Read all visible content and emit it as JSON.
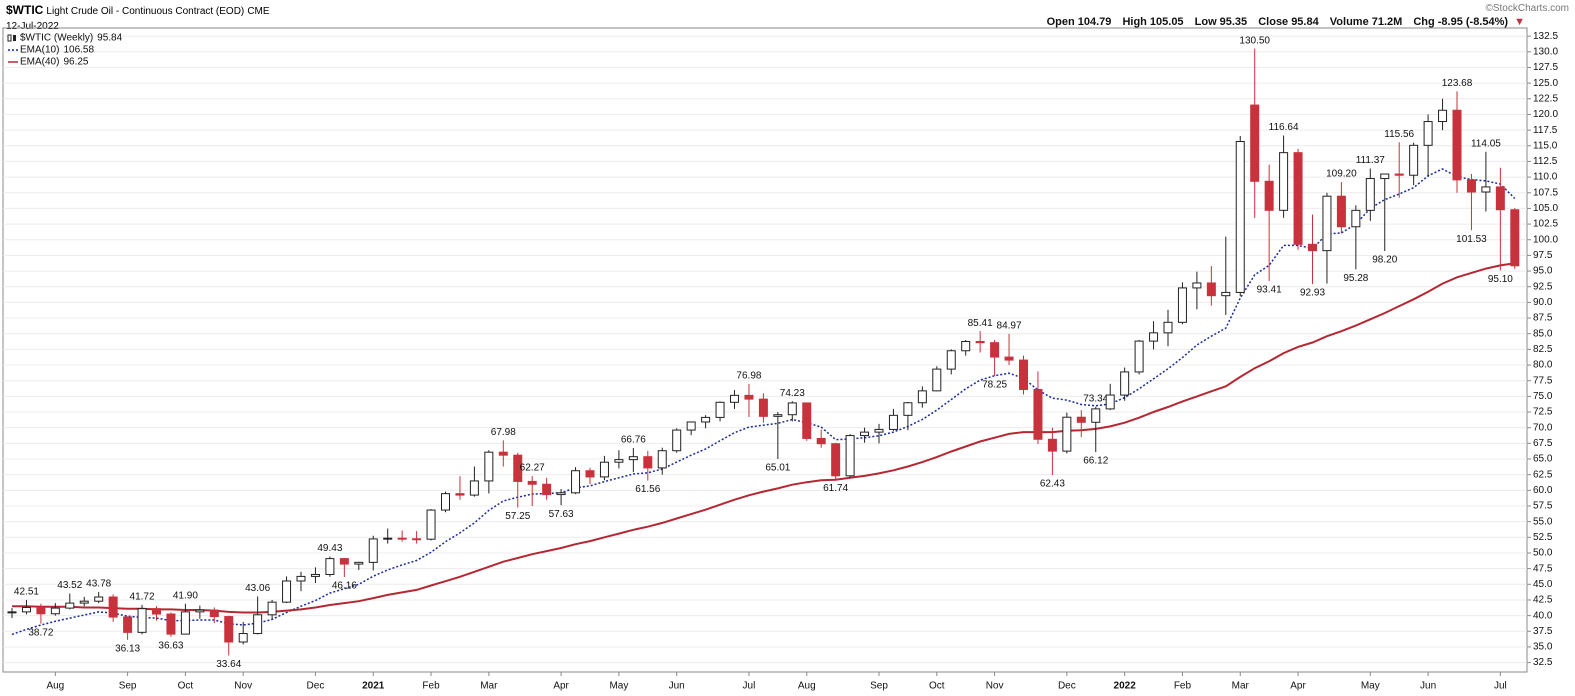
{
  "header": {
    "symbol": "$WTIC",
    "description": "Light Crude Oil - Continuous Contract (EOD)",
    "exchange": "CME",
    "date": "12-Jul-2022",
    "quote_labels": [
      "Open",
      "High",
      "Low",
      "Close",
      "Volume",
      "Chg"
    ],
    "volume": "71.2M",
    "change": "-8.95 (-8.54%)",
    "credit": "©StockCharts.com"
  },
  "chart_data": {
    "type": "candlestick",
    "name": "$WTIC (Weekly)",
    "categories": [
      null,
      null,
      null,
      "Aug",
      null,
      null,
      null,
      null,
      "Sep",
      null,
      null,
      null,
      "Oct",
      null,
      null,
      null,
      "Nov",
      null,
      null,
      null,
      null,
      "Dec",
      null,
      null,
      null,
      "2021",
      null,
      null,
      null,
      "Feb",
      null,
      null,
      null,
      "Mar",
      null,
      null,
      null,
      null,
      "Apr",
      null,
      null,
      null,
      "May",
      null,
      null,
      null,
      "Jun",
      null,
      null,
      null,
      null,
      "Jul",
      null,
      null,
      null,
      "Aug",
      null,
      null,
      null,
      null,
      "Sep",
      null,
      null,
      null,
      "Oct",
      null,
      null,
      null,
      "Nov",
      null,
      null,
      null,
      null,
      "Dec",
      null,
      null,
      null,
      "2022",
      null,
      null,
      null,
      "Feb",
      null,
      null,
      null,
      "Mar",
      null,
      null,
      null,
      "Apr",
      null,
      null,
      null,
      null,
      "May",
      null,
      null,
      null,
      "Jun",
      null,
      null,
      null,
      null,
      "Jul",
      null
    ],
    "open": [
      40.5,
      40.6,
      41.3,
      40.3,
      41.2,
      42.0,
      42.3,
      42.97,
      39.77,
      37.33,
      41.11,
      40.25,
      37.05,
      40.6,
      40.88,
      39.85,
      35.79,
      37.14,
      40.13,
      42.15,
      45.53,
      46.26,
      46.57,
      49.1,
      48.23,
      48.5,
      52.24,
      52.36,
      52.27,
      52.2,
      56.85,
      59.47,
      59.24,
      61.5,
      66.09,
      65.61,
      61.42,
      60.97,
      59.32,
      59.6,
      63.13,
      62.14,
      64.49,
      64.9,
      65.37,
      63.58,
      66.32,
      69.62,
      70.91,
      71.64,
      74.05,
      75.16,
      74.56,
      71.81,
      72.07,
      73.95,
      68.28,
      67.44,
      62.32,
      68.74,
      69.29,
      69.72,
      71.97,
      73.98,
      75.88,
      79.35,
      82.28,
      83.76,
      83.57,
      81.27,
      80.79,
      76.1,
      68.15,
      66.26,
      71.67,
      70.86,
      73.0,
      75.21,
      78.9,
      83.82,
      85.14,
      86.82,
      92.31,
      93.1,
      91.07,
      91.59,
      121.5,
      109.33,
      104.7,
      113.9,
      99.27,
      98.26,
      106.95,
      102.07,
      104.69,
      109.77,
      110.49,
      110.3,
      115.07,
      118.87,
      120.67,
      109.56,
      107.62,
      108.43,
      104.79
    ],
    "high": [
      41.2,
      42.51,
      41.9,
      42.0,
      43.52,
      43.0,
      43.78,
      43.4,
      39.9,
      41.72,
      41.5,
      40.5,
      41.9,
      41.6,
      41.3,
      40.0,
      39.0,
      43.06,
      42.5,
      46.26,
      47.0,
      47.7,
      49.43,
      49.2,
      48.6,
      52.75,
      53.9,
      53.6,
      53.5,
      57.0,
      59.8,
      62.26,
      63.8,
      66.4,
      67.98,
      66.0,
      62.27,
      62.0,
      60.2,
      63.7,
      63.6,
      65.5,
      66.4,
      66.76,
      66.3,
      66.8,
      69.9,
      71.0,
      72.0,
      74.2,
      76.0,
      76.98,
      75.5,
      72.5,
      74.23,
      74.0,
      69.7,
      67.6,
      69.0,
      70.0,
      70.6,
      73.0,
      74.1,
      76.6,
      79.8,
      82.5,
      84.0,
      85.41,
      84.0,
      84.97,
      81.5,
      79.0,
      70.0,
      72.4,
      72.8,
      73.34,
      77.0,
      79.6,
      84.0,
      87.0,
      88.8,
      93.2,
      94.9,
      95.8,
      100.5,
      116.57,
      130.5,
      112.0,
      116.64,
      114.5,
      104.0,
      107.5,
      109.2,
      105.5,
      111.37,
      110.5,
      115.56,
      115.5,
      120.0,
      122.5,
      123.68,
      110.5,
      114.05,
      111.5,
      105.05
    ],
    "low": [
      39.6,
      40.2,
      38.72,
      40.0,
      41.0,
      41.5,
      42.0,
      39.0,
      36.13,
      37.0,
      39.2,
      36.63,
      37.0,
      39.5,
      38.8,
      33.64,
      35.4,
      37.0,
      39.5,
      42.0,
      43.9,
      45.2,
      46.2,
      46.16,
      47.3,
      47.2,
      51.5,
      51.8,
      51.5,
      52.0,
      56.5,
      58.5,
      59.0,
      59.5,
      63.8,
      57.25,
      57.5,
      58.5,
      57.63,
      59.4,
      61.0,
      61.6,
      63.5,
      62.9,
      61.56,
      62.5,
      66.0,
      68.8,
      69.9,
      71.0,
      73.0,
      71.7,
      70.8,
      65.01,
      71.0,
      67.9,
      66.8,
      61.74,
      62.0,
      67.6,
      67.5,
      69.5,
      69.6,
      73.2,
      75.8,
      78.5,
      81.5,
      82.0,
      78.25,
      80.0,
      75.3,
      67.4,
      62.43,
      65.9,
      68.5,
      66.12,
      72.8,
      74.3,
      78.5,
      82.5,
      83.0,
      86.5,
      88.9,
      89.5,
      88.0,
      91.0,
      103.5,
      93.41,
      103.5,
      98.4,
      92.93,
      93.0,
      101.0,
      95.28,
      103.0,
      98.2,
      106.7,
      108.7,
      110.0,
      117.5,
      107.5,
      101.53,
      104.5,
      95.1,
      95.35
    ],
    "close": [
      40.6,
      41.3,
      40.3,
      41.2,
      42.0,
      42.3,
      42.97,
      39.77,
      37.33,
      41.11,
      40.25,
      37.05,
      40.6,
      40.88,
      39.85,
      35.79,
      37.14,
      40.13,
      42.15,
      45.53,
      46.26,
      46.57,
      49.1,
      48.23,
      48.5,
      52.24,
      52.36,
      52.27,
      52.2,
      56.85,
      59.47,
      59.24,
      61.5,
      66.09,
      65.61,
      61.42,
      60.97,
      59.32,
      59.6,
      63.13,
      62.14,
      64.49,
      64.9,
      65.37,
      63.58,
      66.32,
      69.62,
      70.91,
      71.64,
      74.05,
      75.16,
      74.56,
      71.81,
      72.07,
      73.95,
      68.28,
      67.44,
      62.32,
      68.74,
      69.29,
      69.72,
      71.97,
      73.98,
      75.88,
      79.35,
      82.28,
      83.76,
      83.57,
      81.27,
      80.79,
      76.1,
      68.15,
      66.26,
      71.67,
      70.86,
      73.0,
      75.21,
      78.9,
      83.82,
      85.14,
      86.82,
      92.31,
      93.1,
      91.07,
      91.59,
      115.68,
      109.33,
      104.7,
      113.9,
      99.27,
      98.26,
      106.95,
      102.07,
      104.69,
      109.77,
      110.49,
      110.3,
      115.07,
      118.87,
      120.67,
      109.56,
      107.62,
      108.43,
      104.79,
      95.84
    ],
    "high_labels": [
      null,
      "42.51",
      null,
      null,
      "43.52",
      null,
      "43.78",
      null,
      null,
      "41.72",
      null,
      null,
      "41.90",
      null,
      null,
      null,
      null,
      "43.06",
      null,
      null,
      null,
      null,
      "49.43",
      null,
      null,
      null,
      null,
      null,
      null,
      null,
      null,
      null,
      null,
      null,
      "67.98",
      null,
      "62.27",
      null,
      null,
      null,
      null,
      null,
      null,
      "66.76",
      null,
      null,
      null,
      null,
      null,
      null,
      null,
      "76.98",
      null,
      null,
      "74.23",
      null,
      null,
      null,
      null,
      null,
      null,
      null,
      null,
      null,
      null,
      null,
      null,
      "85.41",
      null,
      "84.97",
      null,
      null,
      null,
      null,
      null,
      "73.34",
      null,
      null,
      null,
      null,
      null,
      null,
      null,
      null,
      null,
      null,
      "130.50",
      null,
      "116.64",
      null,
      null,
      null,
      "109.20",
      null,
      "111.37",
      null,
      "115.56",
      null,
      null,
      null,
      "123.68",
      null,
      "114.05",
      null,
      null
    ],
    "low_labels": [
      null,
      null,
      "38.72",
      null,
      null,
      null,
      null,
      null,
      "36.13",
      null,
      null,
      "36.63",
      null,
      null,
      null,
      "33.64",
      null,
      null,
      null,
      null,
      null,
      null,
      null,
      "46.16",
      null,
      null,
      null,
      null,
      null,
      null,
      null,
      null,
      null,
      null,
      null,
      "57.25",
      null,
      null,
      "57.63",
      null,
      null,
      null,
      null,
      null,
      "61.56",
      null,
      null,
      null,
      null,
      null,
      null,
      null,
      null,
      "65.01",
      null,
      null,
      null,
      "61.74",
      null,
      null,
      null,
      null,
      null,
      null,
      null,
      null,
      null,
      null,
      "78.25",
      null,
      null,
      null,
      "62.43",
      null,
      null,
      "66.12",
      null,
      null,
      null,
      null,
      null,
      null,
      null,
      null,
      null,
      null,
      null,
      "93.41",
      null,
      null,
      "92.93",
      null,
      null,
      "95.28",
      null,
      "98.20",
      null,
      null,
      null,
      null,
      null,
      "101.53",
      null,
      "95.10",
      null
    ],
    "up_color": "#ffffff",
    "down_color": "#c8323c",
    "outline_color": "#222222",
    "series": [
      {
        "name": "EMA(10)",
        "color": "#1a2a9c",
        "style": "dotted",
        "values": [
          37.0,
          37.8,
          38.5,
          39.1,
          39.6,
          40.1,
          40.6,
          40.4,
          39.9,
          39.7,
          39.6,
          39.2,
          39.2,
          39.3,
          39.3,
          38.7,
          38.5,
          38.8,
          39.4,
          40.5,
          41.5,
          42.4,
          43.6,
          44.3,
          45.0,
          46.3,
          47.3,
          48.1,
          48.8,
          50.1,
          51.8,
          53.2,
          54.8,
          56.8,
          58.3,
          58.9,
          59.4,
          59.5,
          59.6,
          60.4,
          60.7,
          61.4,
          62.0,
          62.6,
          62.8,
          63.4,
          64.5,
          65.6,
          66.6,
          67.9,
          69.2,
          70.1,
          70.4,
          70.7,
          71.3,
          70.8,
          70.1,
          68.1,
          68.2,
          68.4,
          68.7,
          69.3,
          70.2,
          71.3,
          72.8,
          74.5,
          76.2,
          77.6,
          78.3,
          78.7,
          77.9,
          76.0,
          74.7,
          74.4,
          73.7,
          73.5,
          73.8,
          74.8,
          76.2,
          77.8,
          79.4,
          81.2,
          83.2,
          84.6,
          85.9,
          90.7,
          94.4,
          95.9,
          99.1,
          99.1,
          98.6,
          100.9,
          101.1,
          102.5,
          105.0,
          106.4,
          107.3,
          108.3,
          110.2,
          111.3,
          110.1,
          109.6,
          109.4,
          108.9,
          106.58
        ]
      },
      {
        "name": "EMA(40)",
        "color": "#b52833",
        "style": "solid",
        "values": [
          41.5,
          41.5,
          41.4,
          41.4,
          41.4,
          41.3,
          41.3,
          41.2,
          41.1,
          41.1,
          41.0,
          41.0,
          40.9,
          40.9,
          40.8,
          40.6,
          40.5,
          40.5,
          40.6,
          40.8,
          41.0,
          41.3,
          41.7,
          42.0,
          42.3,
          42.8,
          43.3,
          43.7,
          44.1,
          44.8,
          45.5,
          46.2,
          47.0,
          47.8,
          48.6,
          49.2,
          49.8,
          50.3,
          50.8,
          51.4,
          51.9,
          52.5,
          53.1,
          53.7,
          54.2,
          54.8,
          55.5,
          56.2,
          56.9,
          57.7,
          58.5,
          59.2,
          59.8,
          60.3,
          60.9,
          61.3,
          61.6,
          61.7,
          62.0,
          62.3,
          62.7,
          63.2,
          63.8,
          64.5,
          65.3,
          66.2,
          67.0,
          67.8,
          68.4,
          69.0,
          69.3,
          69.3,
          69.3,
          69.5,
          69.6,
          69.8,
          70.2,
          70.8,
          71.6,
          72.5,
          73.3,
          74.2,
          75.0,
          75.8,
          76.6,
          78.1,
          79.5,
          80.6,
          81.9,
          82.9,
          83.6,
          84.6,
          85.4,
          86.3,
          87.3,
          88.3,
          89.4,
          90.5,
          91.7,
          93.0,
          94.0,
          94.7,
          95.4,
          95.9,
          96.25
        ]
      }
    ],
    "ylim": [
      31,
      133.8
    ],
    "yticks": [
      32.5,
      {
        "value": 35,
        "label": "35.0"
      },
      37.5,
      {
        "value": 40,
        "label": "40.0"
      },
      42.5,
      {
        "value": 45,
        "label": "45.0"
      },
      47.5,
      {
        "value": 50,
        "label": "50.0"
      },
      52.5,
      {
        "value": 55,
        "label": "55.0"
      },
      57.5,
      {
        "value": 60,
        "label": "60.0"
      },
      62.5,
      {
        "value": 65,
        "label": "65.0"
      },
      67.5,
      {
        "value": 70,
        "label": "70.0"
      },
      72.5,
      {
        "value": 75,
        "label": "75.0"
      },
      77.5,
      {
        "value": 80,
        "label": "80.0"
      },
      82.5,
      {
        "value": 85,
        "label": "85.0"
      },
      87.5,
      {
        "value": 90,
        "label": "90.0"
      },
      92.5,
      {
        "value": 95,
        "label": "95.0"
      },
      97.5,
      {
        "value": 100,
        "label": "100.0"
      },
      102.5,
      {
        "value": 105,
        "label": "105.0"
      },
      107.5,
      {
        "value": 110,
        "label": "110.0"
      },
      112.5,
      {
        "value": 115,
        "label": "115.0"
      },
      117.5,
      {
        "value": 120,
        "label": "120.0"
      },
      122.5,
      {
        "value": 125,
        "label": "125.0"
      },
      127.5,
      {
        "value": 130,
        "label": "130.0"
      },
      132.5
    ],
    "grid": true
  }
}
